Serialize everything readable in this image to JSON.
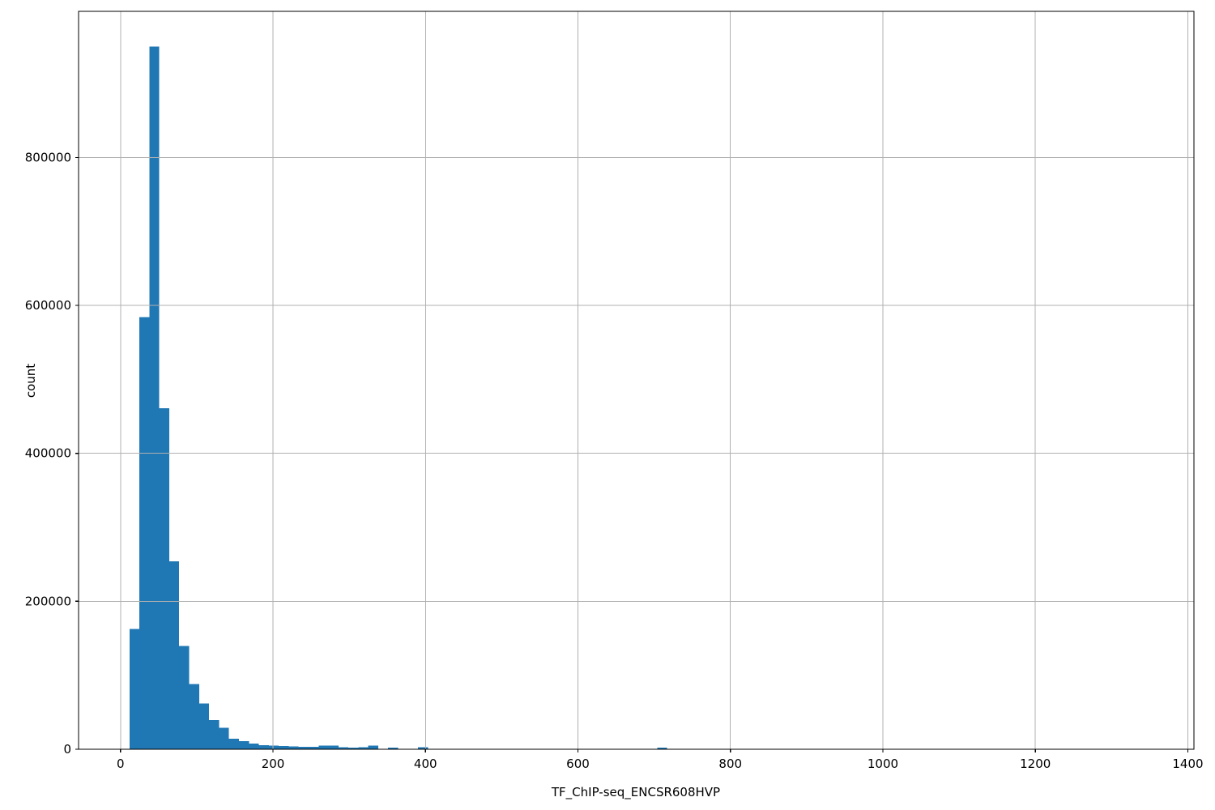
{
  "chart_data": {
    "type": "bar",
    "subtype": "histogram",
    "title": "",
    "xlabel": "TF_ChIP-seq_ENCSR608HVP",
    "ylabel": "count",
    "xlim": [
      -55,
      1408
    ],
    "ylim": [
      0,
      997500
    ],
    "x_ticks": [
      0,
      200,
      400,
      600,
      800,
      1000,
      1200,
      1400
    ],
    "y_ticks": [
      0,
      200000,
      400000,
      600000,
      800000
    ],
    "grid": true,
    "grid_on_top": true,
    "legend": "none",
    "bar_color": "#1f77b4",
    "grid_color": "#b0b0b0",
    "spine_color": "#000000",
    "background_color": "#ffffff",
    "bins": [
      {
        "start": 11.7,
        "end": 24.8,
        "count": 162500
      },
      {
        "start": 24.8,
        "end": 37.8,
        "count": 584000
      },
      {
        "start": 37.8,
        "end": 50.9,
        "count": 950000
      },
      {
        "start": 50.9,
        "end": 63.9,
        "count": 461000
      },
      {
        "start": 63.9,
        "end": 77.0,
        "count": 254000
      },
      {
        "start": 77.0,
        "end": 90.0,
        "count": 139500
      },
      {
        "start": 90.0,
        "end": 103.1,
        "count": 88400
      },
      {
        "start": 103.1,
        "end": 116.1,
        "count": 61700
      },
      {
        "start": 116.1,
        "end": 129.2,
        "count": 39500
      },
      {
        "start": 129.2,
        "end": 142.2,
        "count": 28800
      },
      {
        "start": 142.2,
        "end": 155.3,
        "count": 14500
      },
      {
        "start": 155.3,
        "end": 168.4,
        "count": 11000
      },
      {
        "start": 168.4,
        "end": 181.4,
        "count": 7500
      },
      {
        "start": 181.4,
        "end": 194.5,
        "count": 5500
      },
      {
        "start": 194.5,
        "end": 207.5,
        "count": 5000
      },
      {
        "start": 207.5,
        "end": 220.6,
        "count": 4500
      },
      {
        "start": 220.6,
        "end": 233.6,
        "count": 3600
      },
      {
        "start": 233.6,
        "end": 246.7,
        "count": 3400
      },
      {
        "start": 246.7,
        "end": 259.8,
        "count": 3200
      },
      {
        "start": 259.8,
        "end": 272.8,
        "count": 4700
      },
      {
        "start": 272.8,
        "end": 285.8,
        "count": 4700
      },
      {
        "start": 285.8,
        "end": 298.9,
        "count": 3000
      },
      {
        "start": 298.9,
        "end": 312.0,
        "count": 2200
      },
      {
        "start": 312.0,
        "end": 325.0,
        "count": 2500
      },
      {
        "start": 325.0,
        "end": 338.1,
        "count": 4700
      },
      {
        "start": 338.1,
        "end": 351.1,
        "count": 600
      },
      {
        "start": 351.1,
        "end": 364.2,
        "count": 2200
      },
      {
        "start": 364.2,
        "end": 377.2,
        "count": 400
      },
      {
        "start": 377.2,
        "end": 390.3,
        "count": 300
      },
      {
        "start": 390.3,
        "end": 403.4,
        "count": 2600
      },
      {
        "start": 703.9,
        "end": 717.0,
        "count": 2400
      }
    ]
  }
}
